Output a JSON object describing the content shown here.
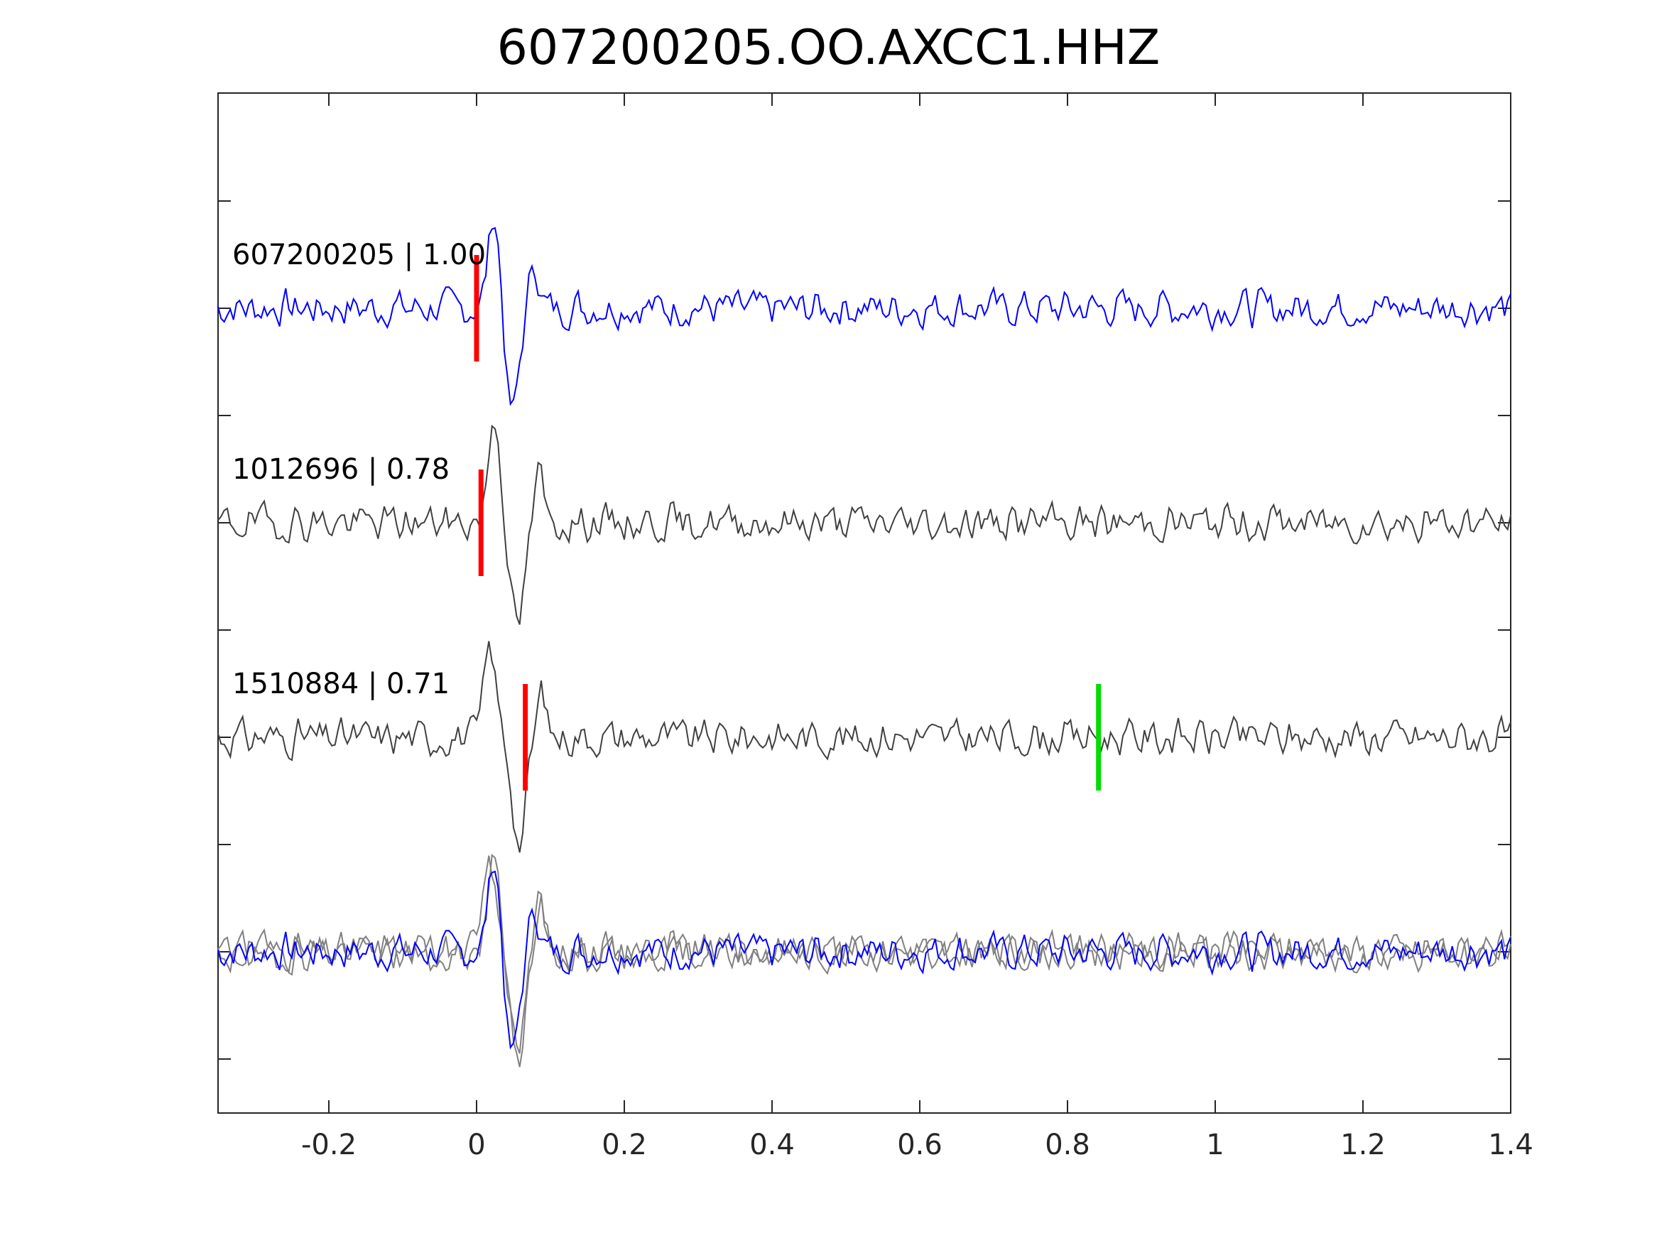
{
  "chart_data": {
    "type": "line",
    "title": "607200205.OO.AXCC1.HHZ",
    "xlabel": "",
    "ylabel": "",
    "xlim": [
      -0.35,
      1.4
    ],
    "x_ticks": [
      -0.2,
      0,
      0.2,
      0.4,
      0.6,
      0.8,
      1,
      1.2,
      1.4
    ],
    "x_tick_labels": [
      "-0.2",
      "0",
      "0.2",
      "0.4",
      "0.6",
      "0.8",
      "1",
      "1.2",
      "1.4"
    ],
    "y_tick_labels": [],
    "grid": false,
    "colors": {
      "template": "#0000ff",
      "match": "#404040",
      "overlay_match": "#808080",
      "p_pick": "#ff0000",
      "s_pick": "#00dd00",
      "axes": "#262626"
    },
    "traces": [
      {
        "label": "607200205 | 1.00",
        "color_role": "template",
        "offset": 0,
        "p_pick": 0.0,
        "s_pick": null,
        "noise_seed": 7,
        "peak_time": 0.024,
        "peak_amp": 0.9,
        "trough_time": 0.048,
        "trough_amp": -1.0
      },
      {
        "label": "1012696 | 0.78",
        "color_role": "match",
        "offset": -1,
        "p_pick": 0.006,
        "s_pick": null,
        "noise_seed": 19,
        "peak_time": 0.024,
        "peak_amp": 1.0,
        "trough_time": 0.055,
        "trough_amp": -1.0
      },
      {
        "label": "1510884 | 0.71",
        "color_role": "match",
        "offset": -2,
        "p_pick": 0.066,
        "s_pick": 0.842,
        "noise_seed": 31,
        "peak_time": 0.018,
        "peak_amp": 0.85,
        "trough_time": 0.058,
        "trough_amp": -1.0
      }
    ],
    "overlay_offset": -3
  }
}
